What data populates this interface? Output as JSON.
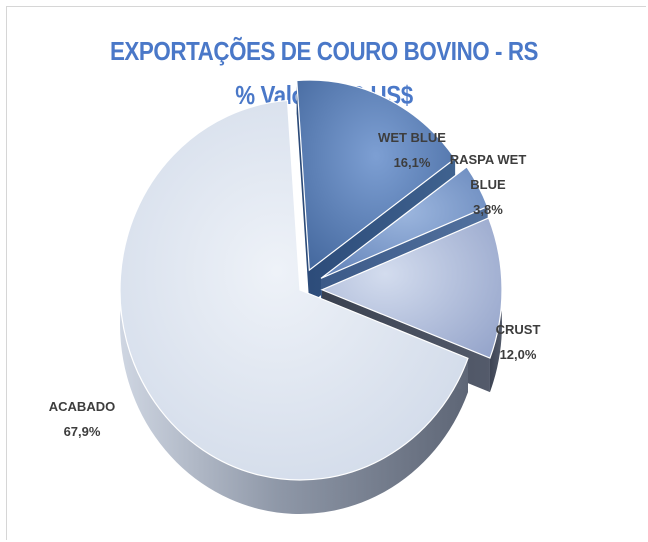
{
  "chart_data": {
    "type": "pie",
    "title": "EXPORTAÇÕES  DE COURO BOVINO - RS",
    "subtitle": "% Valor FOB US$",
    "labels_show": "name_and_percent",
    "slices": [
      {
        "name": "WET BLUE",
        "value": 16.1,
        "label": "16,1%",
        "name_lines": [
          "WET BLUE"
        ],
        "color": "#4c74ad"
      },
      {
        "name": "RASPA WET BLUE",
        "value": 3.8,
        "label": "3,8%",
        "name_lines": [
          "RASPA WET",
          "BLUE"
        ],
        "color": "#6f8fc4"
      },
      {
        "name": "CRUST",
        "value": 12.0,
        "label": "12,0%",
        "name_lines": [
          "CRUST"
        ],
        "color": "#a3b3d4"
      },
      {
        "name": "ACABADO",
        "value": 67.9,
        "label": "67,9%",
        "name_lines": [
          "ACABADO"
        ],
        "color": "#dde4ef"
      }
    ],
    "style": "3d-exploded"
  }
}
